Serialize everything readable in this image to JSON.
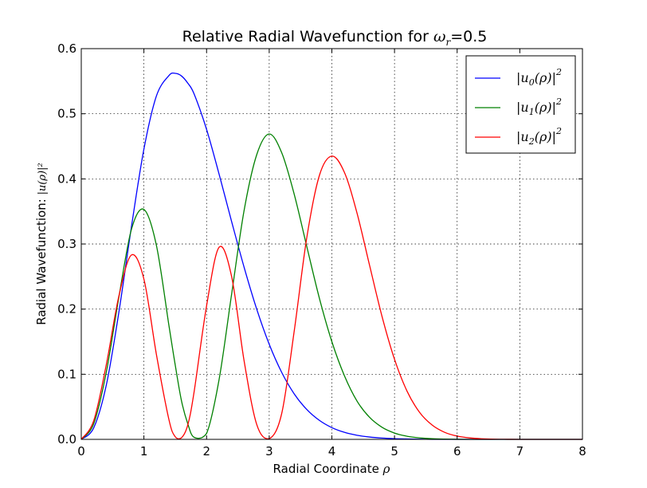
{
  "chart_data": {
    "type": "line",
    "title": {
      "prefix": "Relative Radial Wavefunction for ",
      "symbol": "ω",
      "subscript": "r",
      "suffix": "=0.5"
    },
    "xlabel": {
      "text": "Radial Coordinate ",
      "symbol": "ρ"
    },
    "ylabel": {
      "text": "Radial Wavefunction: ",
      "math": "|u(ρ)|²"
    },
    "xlim": [
      0,
      8
    ],
    "ylim": [
      0,
      0.6
    ],
    "xticks": [
      0,
      1,
      2,
      3,
      4,
      5,
      6,
      7,
      8
    ],
    "yticks": [
      0.0,
      0.1,
      0.2,
      0.3,
      0.4,
      0.5,
      0.6
    ],
    "xtick_labels": [
      "0",
      "1",
      "2",
      "3",
      "4",
      "5",
      "6",
      "7",
      "8"
    ],
    "ytick_labels": [
      "0.0",
      "0.1",
      "0.2",
      "0.3",
      "0.4",
      "0.5",
      "0.6"
    ],
    "grid": true,
    "grid_style": "dotted",
    "legend_position": "top-right",
    "x": [
      0,
      0.2,
      0.4,
      0.6,
      0.8,
      1.0,
      1.2,
      1.4,
      1.5,
      1.6,
      1.7,
      1.8,
      2.0,
      2.2,
      2.4,
      2.6,
      2.8,
      3.0,
      3.2,
      3.4,
      3.6,
      3.8,
      4.0,
      4.2,
      4.4,
      4.6,
      4.8,
      5.0,
      5.2,
      5.4,
      5.6,
      5.8,
      6.0,
      6.2,
      6.4,
      6.6,
      6.8,
      7.0,
      7.5,
      8.0
    ],
    "series": [
      {
        "name": "|u₀(ρ)|²",
        "legend": {
          "base": "|u",
          "sub": "0",
          "mid": "(ρ)|",
          "sup": "2"
        },
        "color": "#0000ff",
        "values": [
          0,
          0.018,
          0.0836,
          0.1952,
          0.326,
          0.4458,
          0.5275,
          0.5587,
          0.562,
          0.558,
          0.547,
          0.5306,
          0.476,
          0.4072,
          0.3344,
          0.264,
          0.2001,
          0.146,
          0.1027,
          0.0697,
          0.0458,
          0.0292,
          0.018,
          0.0108,
          0.0063,
          0.0036,
          0.002,
          0.0011,
          0.0006,
          0.0003,
          0.0001,
          0,
          0,
          0,
          0,
          0,
          0,
          0,
          0,
          0
        ]
      },
      {
        "name": "|u₁(ρ)|²",
        "legend": {
          "base": "|u",
          "sub": "1",
          "mid": "(ρ)|",
          "sup": "2"
        },
        "color": "#008000",
        "values": [
          0,
          0.0243,
          0.1033,
          0.2182,
          0.3222,
          0.353,
          0.2975,
          0.1743,
          0.114,
          0.059,
          0.024,
          0.0032,
          0.009,
          0.092,
          0.2231,
          0.352,
          0.437,
          0.469,
          0.44,
          0.376,
          0.296,
          0.217,
          0.15,
          0.0978,
          0.059,
          0.034,
          0.0186,
          0.0097,
          0.0048,
          0.0023,
          0.001,
          0.0004,
          0.0001,
          0,
          0,
          0,
          0,
          0,
          0,
          0
        ]
      },
      {
        "name": "|u₂(ρ)|²",
        "legend": {
          "base": "|u",
          "sub": "2",
          "mid": "(ρ)|",
          "sup": "2"
        },
        "color": "#ff0000",
        "values": [
          0,
          0.029,
          0.115,
          0.22,
          0.283,
          0.246,
          0.13,
          0.03,
          0.004,
          0.0025,
          0.0221,
          0.0723,
          0.205,
          0.295,
          0.25,
          0.12,
          0.023,
          0.001,
          0.04,
          0.167,
          0.31,
          0.405,
          0.435,
          0.41,
          0.348,
          0.268,
          0.189,
          0.123,
          0.074,
          0.0415,
          0.022,
          0.0108,
          0.005,
          0.0022,
          0.0009,
          0.0003,
          0.0001,
          0,
          0,
          0
        ]
      }
    ]
  }
}
